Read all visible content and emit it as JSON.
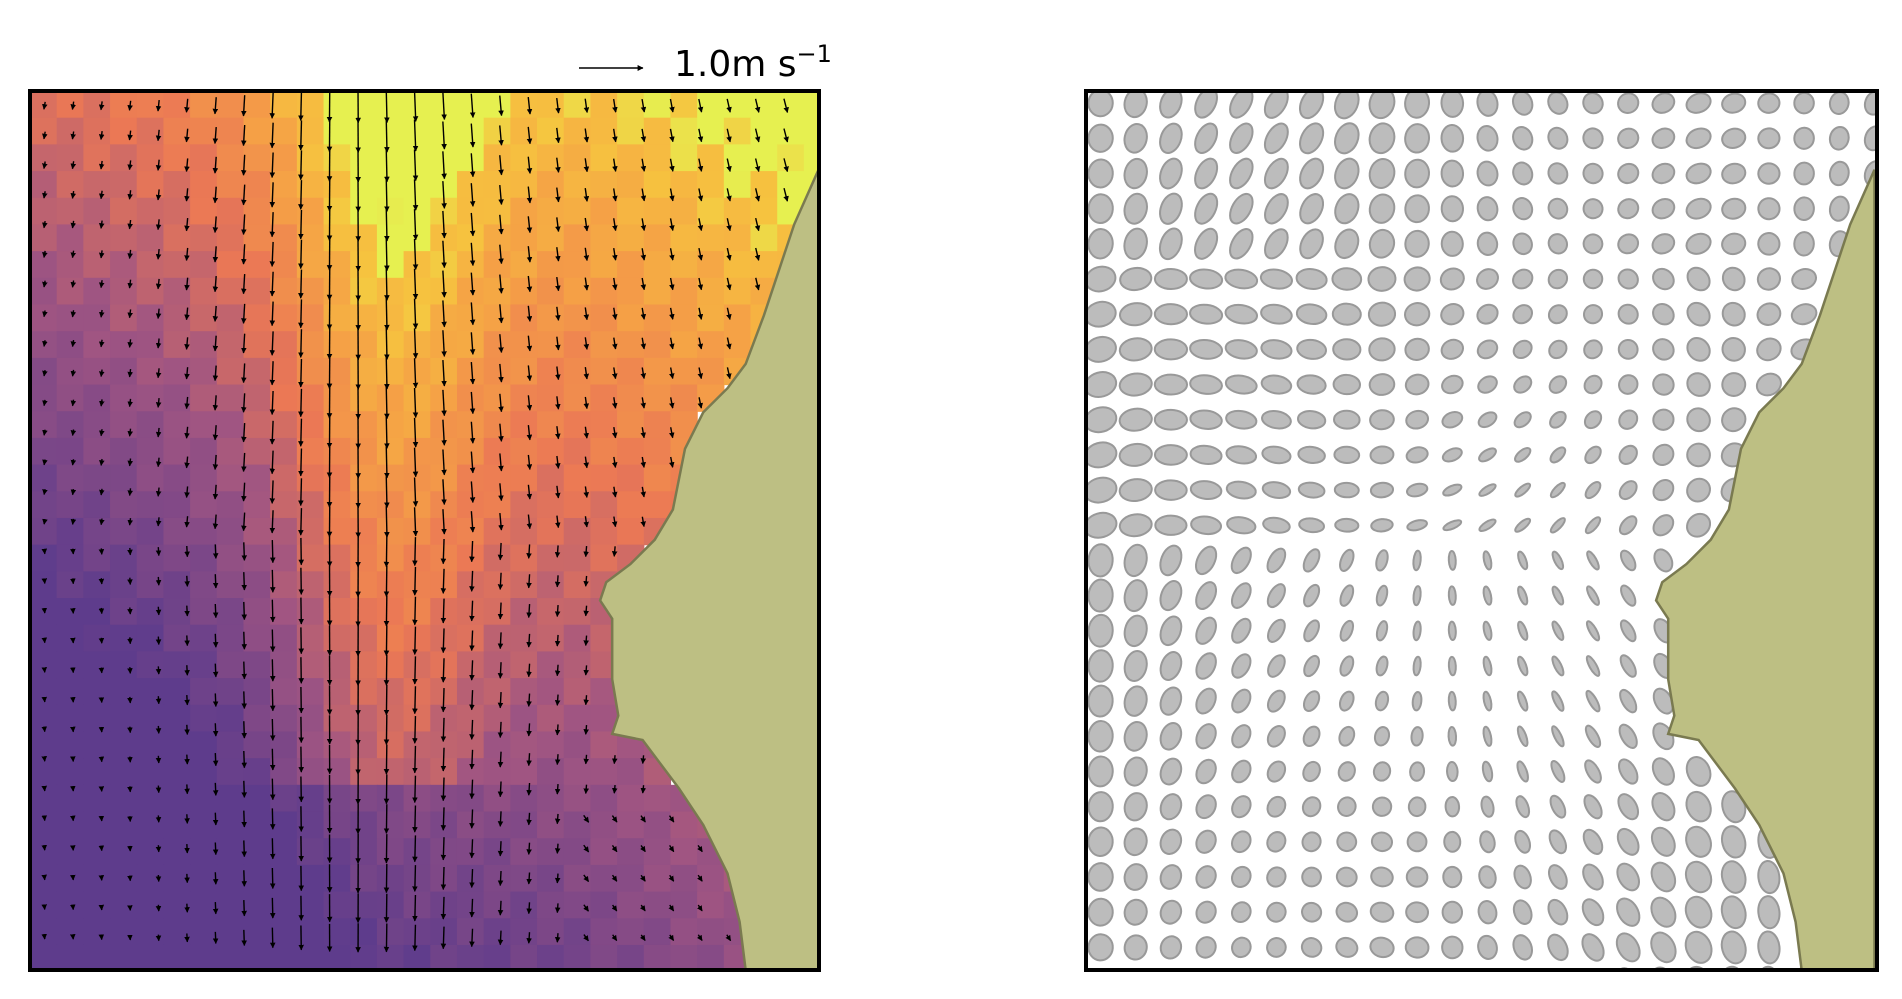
{
  "chart_data": {
    "type": "quiver",
    "key_label": "1.0m s",
    "key_exponent": "−1"
  }
}
